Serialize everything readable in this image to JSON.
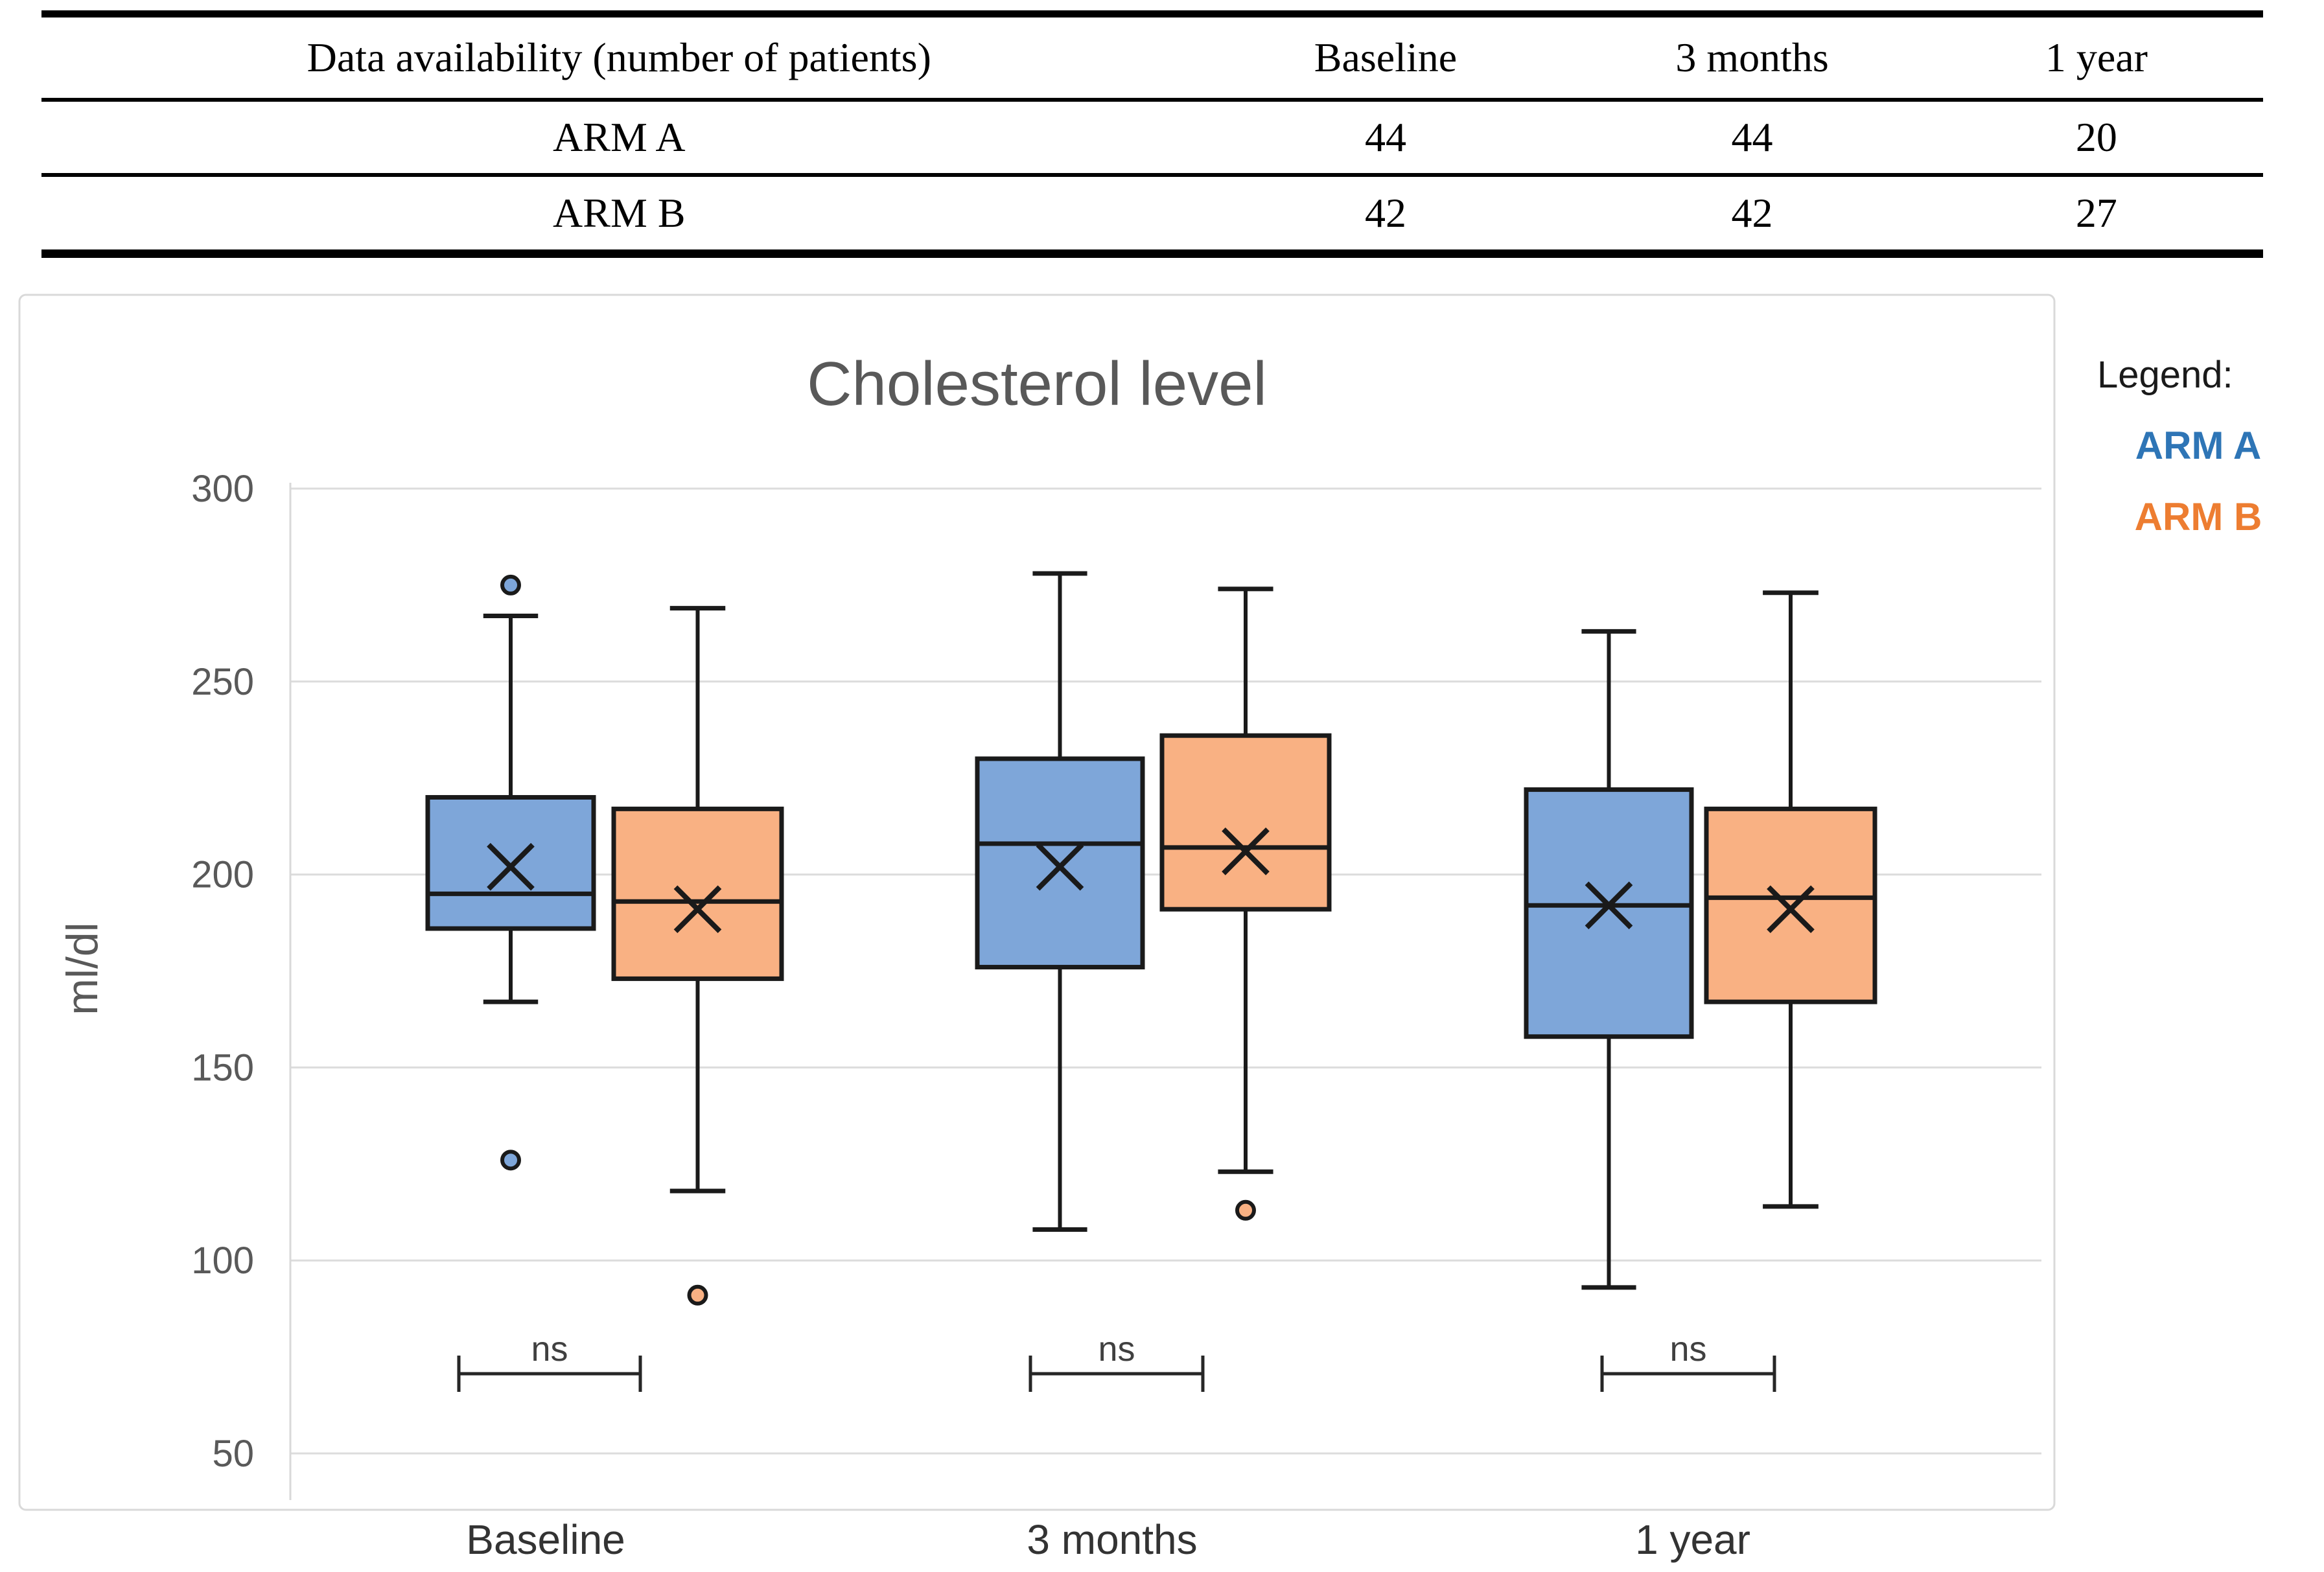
{
  "table": {
    "header": [
      "Data availability (number of patients)",
      "Baseline",
      "3 months",
      "1 year"
    ],
    "rows": [
      {
        "label": "ARM A",
        "values": [
          "44",
          "44",
          "20"
        ]
      },
      {
        "label": "ARM B",
        "values": [
          "42",
          "42",
          "27"
        ]
      }
    ]
  },
  "chart_data": {
    "type": "boxplot",
    "title": "Cholesterol level",
    "ylabel": "ml/dl",
    "yticks": [
      300,
      250,
      200,
      150,
      100,
      50
    ],
    "ylim": [
      50,
      300
    ],
    "grid": "horizontal",
    "legend_position": "right-outside",
    "categories": [
      "Baseline",
      "3 months",
      "1 year"
    ],
    "legend": {
      "title": "Legend:",
      "entries": [
        {
          "label": "ARM A",
          "color": "#2E75B6"
        },
        {
          "label": "ARM B",
          "color": "#ED7D31"
        }
      ]
    },
    "significance": [
      {
        "category": "Baseline",
        "label": "ns"
      },
      {
        "category": "3 months",
        "label": "ns"
      },
      {
        "category": "1 year",
        "label": "ns"
      }
    ],
    "series": [
      {
        "name": "ARM A",
        "fill": "#7EA6D9",
        "boxes": [
          {
            "category": "Baseline",
            "whisker_low": 167,
            "q1": 186,
            "median": 195,
            "mean": 202,
            "q3": 220,
            "whisker_high": 267,
            "outliers": [
              275,
              126
            ]
          },
          {
            "category": "3 months",
            "whisker_low": 108,
            "q1": 176,
            "median": 208,
            "mean": 202,
            "q3": 230,
            "whisker_high": 278,
            "outliers": []
          },
          {
            "category": "1 year",
            "whisker_low": 93,
            "q1": 158,
            "median": 192,
            "mean": 192,
            "q3": 222,
            "whisker_high": 263,
            "outliers": []
          }
        ]
      },
      {
        "name": "ARM B",
        "fill": "#F9B183",
        "boxes": [
          {
            "category": "Baseline",
            "whisker_low": 118,
            "q1": 173,
            "median": 193,
            "mean": 191,
            "q3": 217,
            "whisker_high": 269,
            "outliers": [
              91
            ]
          },
          {
            "category": "3 months",
            "whisker_low": 123,
            "q1": 191,
            "median": 207,
            "mean": 206,
            "q3": 236,
            "whisker_high": 274,
            "outliers": [
              113
            ]
          },
          {
            "category": "1 year",
            "whisker_low": 114,
            "q1": 167,
            "median": 194,
            "mean": 191,
            "q3": 217,
            "whisker_high": 273,
            "outliers": []
          }
        ]
      }
    ],
    "colors": {
      "title_text": "#595959",
      "axis_text": "#595959",
      "category_text": "#333333",
      "gridline": "#DCDCDC",
      "frame": "#D9D9D9",
      "box_stroke": "#1a1a1a",
      "significance_text": "#404040"
    }
  }
}
